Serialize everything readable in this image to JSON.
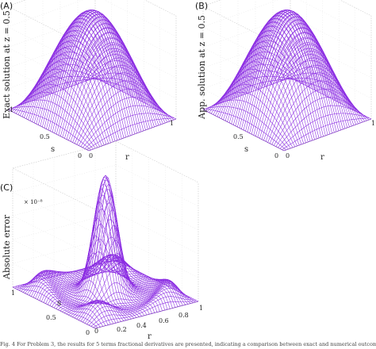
{
  "panels": [
    {
      "label": "(A)",
      "ylabel": "Exact solution at z = 0.5",
      "xlabel": "r",
      "slabel": "s",
      "r_ticks": [
        "0",
        "1"
      ],
      "s_ticks": [
        "1",
        "0.5",
        "0"
      ]
    },
    {
      "label": "(B)",
      "ylabel": "App. solution at z = 0.5",
      "xlabel": "r",
      "slabel": "s",
      "r_ticks": [
        "0",
        "1"
      ],
      "s_ticks": [
        "1",
        "0.5",
        "0"
      ]
    },
    {
      "label": "(C)",
      "ylabel": "Absolute error",
      "xlabel": "r",
      "slabel": "s",
      "r_ticks": [
        "0",
        "0.2",
        "0.4",
        "0.6",
        "0.8",
        "1"
      ],
      "s_ticks": [
        "1",
        "0.5",
        "0"
      ],
      "scale": "× 10⁻⁸"
    }
  ],
  "caption": "Fig. 4  For Problem 3, the results for 5 terms fractional derivatives are presented, indicating a comparison between exact and numerical outcomes",
  "chart_data": [
    {
      "type": "surface",
      "title": "",
      "panel": "(A)",
      "xlabel": "r",
      "ylabel": "s",
      "zlabel": "Exact solution at z = 0.5",
      "xlim": [
        0,
        1
      ],
      "ylim": [
        0,
        1
      ],
      "surface": "sin(pi r) sin(pi s)",
      "z_peak": 1.0,
      "grid": true,
      "color": "#8a2be2"
    },
    {
      "type": "surface",
      "title": "",
      "panel": "(B)",
      "xlabel": "r",
      "ylabel": "s",
      "zlabel": "App. solution at z = 0.5",
      "xlim": [
        0,
        1
      ],
      "ylim": [
        0,
        1
      ],
      "surface": "sin(pi r) sin(pi s)",
      "z_peak": 1.0,
      "grid": true,
      "color": "#8a2be2"
    },
    {
      "type": "surface",
      "title": "",
      "panel": "(C)",
      "xlabel": "r",
      "ylabel": "s",
      "zlabel": "Absolute error",
      "xlim": [
        0,
        1
      ],
      "ylim": [
        0,
        1
      ],
      "z_scale": "1e-8",
      "surface": "oscillatory error surface",
      "grid": true,
      "color": "#8a2be2"
    }
  ]
}
